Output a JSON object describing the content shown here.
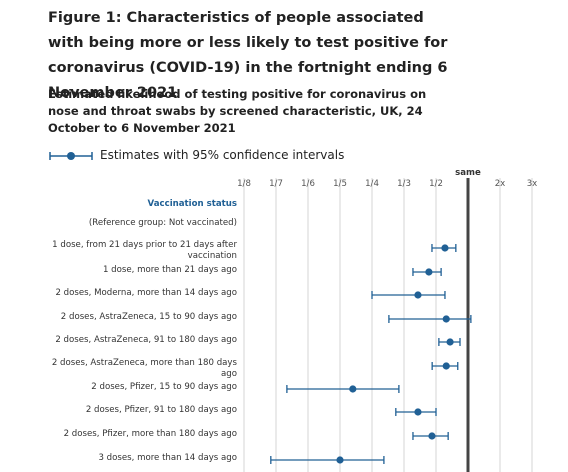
{
  "chart_data": {
    "type": "forest",
    "title": "Figure 1: Characteristics of people associated with being more or less likely to test positive for coronavirus (COVID-19) in the fortnight ending 6 November 2021",
    "subtitle": "Estimated likelihood of testing positive for coronavirus on nose and throat swabs by screened characteristic, UK, 24 October to 6 November 2021",
    "group_label": "Vaccination status",
    "reference_label": "(Reference group: Not vaccinated)",
    "categories": [
      "1 dose, from 21 days prior to 21 days after vaccination",
      "1 dose, more than 21 days ago",
      "2 doses, Moderna, more than 14 days ago",
      "2 doses, AstraZeneca, 15 to 90 days ago",
      "2 doses, AstraZeneca, 91 to 180 days ago",
      "2 doses, AstraZeneca, more than 180 days ago",
      "2 doses, Pfizer, 15 to 90 days ago",
      "2 doses, Pfizer, 91 to 180 days ago",
      "2 doses, Pfizer, more than 180 days ago",
      "3 doses, more than 14 days ago"
    ],
    "series": [
      {
        "name": "Estimates with 95% confidence intervals",
        "color": "#206095",
        "values": [
          0.64,
          0.463,
          0.406,
          0.66,
          0.72,
          0.66,
          0.22,
          0.406,
          0.479,
          0.2
        ],
        "lower": [
          0.479,
          0.38,
          0.25,
          0.294,
          0.545,
          0.48,
          0.151,
          0.312,
          0.38,
          0.14
        ],
        "upper": [
          0.81,
          0.58,
          0.64,
          1.09,
          0.875,
          0.84,
          0.32,
          0.5,
          0.69,
          0.281
        ]
      }
    ],
    "xlim": [
      0.125,
      3
    ],
    "xticks": [
      {
        "value": 0.125,
        "label": "1/8"
      },
      {
        "value": 0.1429,
        "label": "1/7"
      },
      {
        "value": 0.1667,
        "label": "1/6"
      },
      {
        "value": 0.2,
        "label": "1/5"
      },
      {
        "value": 0.25,
        "label": "1/4"
      },
      {
        "value": 0.3333,
        "label": "1/3"
      },
      {
        "value": 0.5,
        "label": "1/2"
      },
      {
        "value": 1,
        "label": "same"
      },
      {
        "value": 2,
        "label": "2x"
      },
      {
        "value": 3,
        "label": "3x"
      }
    ],
    "reference_value": 1,
    "grid": true
  }
}
